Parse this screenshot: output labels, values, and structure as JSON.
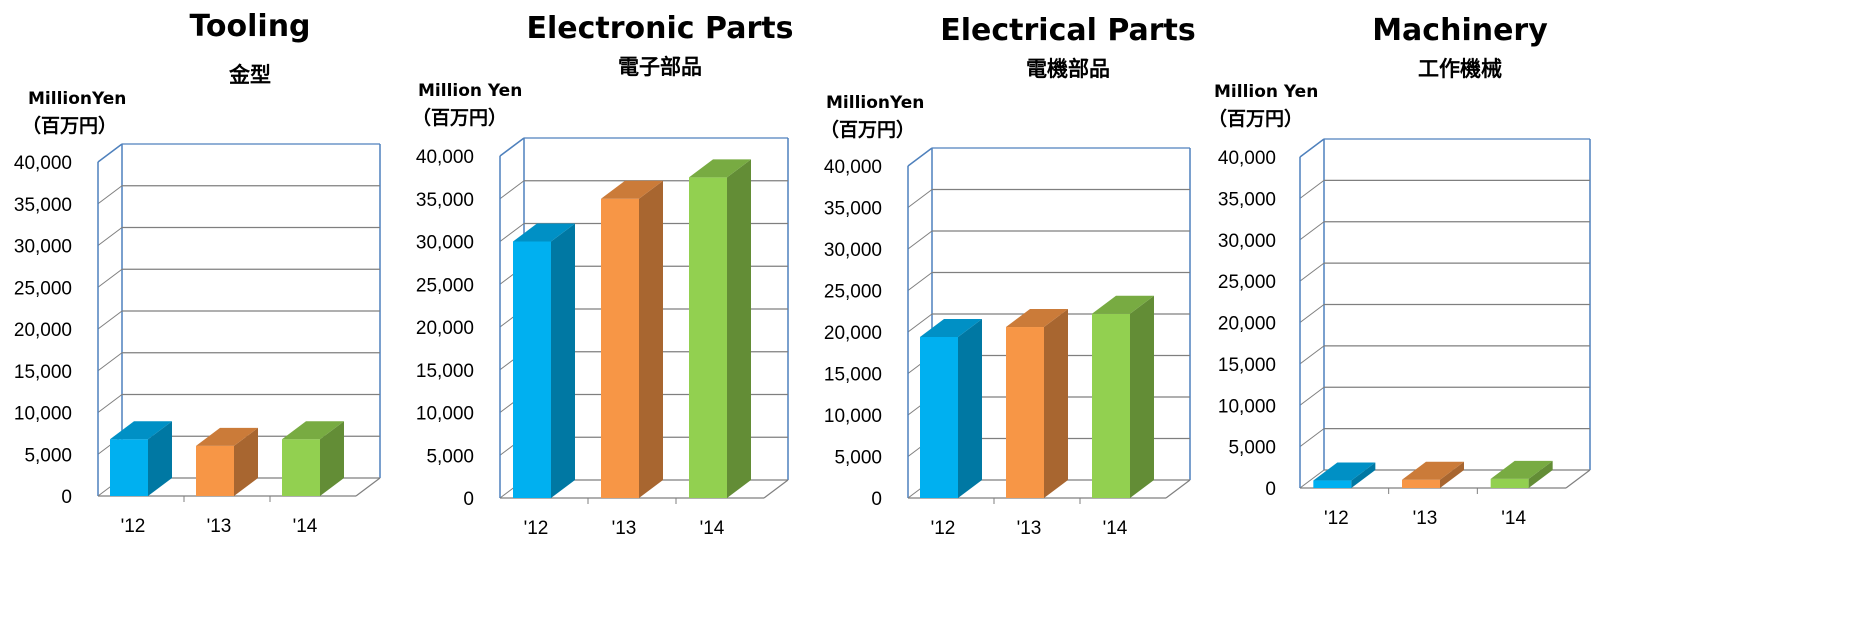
{
  "colors": {
    "bar_2012": "#00B0F0",
    "bar_2013": "#F79646",
    "bar_2014": "#92D050",
    "frame": "#4F81BD",
    "gridline": "#7F7F7F"
  },
  "chart_data": [
    {
      "type": "bar",
      "title": "Tooling",
      "subtitle": "金型",
      "unit_label_line1": "MillionYen",
      "unit_label_line2": "（百万円）",
      "categories": [
        "'12",
        "'13",
        "'14"
      ],
      "values": [
        6800,
        6000,
        6800
      ],
      "ylim": [
        0,
        40000
      ],
      "yticks": [
        "0",
        "5,000",
        "10,000",
        "15,000",
        "20,000",
        "25,000",
        "30,000",
        "35,000",
        "40,000"
      ],
      "grid": true,
      "legend": "none",
      "style": "3d-column"
    },
    {
      "type": "bar",
      "title": "Electronic Parts",
      "subtitle": "電子部品",
      "unit_label_line1": "Million Yen",
      "unit_label_line2": "（百万円）",
      "categories": [
        "'12",
        "'13",
        "'14"
      ],
      "values": [
        30000,
        35000,
        37500
      ],
      "ylim": [
        0,
        40000
      ],
      "yticks": [
        "0",
        "5,000",
        "10,000",
        "15,000",
        "20,000",
        "25,000",
        "30,000",
        "35,000",
        "40,000"
      ],
      "grid": true,
      "legend": "none",
      "style": "3d-column"
    },
    {
      "type": "bar",
      "title": "Electrical Parts",
      "subtitle": "電機部品",
      "unit_label_line1": "MillionYen",
      "unit_label_line2": "（百万円）",
      "categories": [
        "'12",
        "'13",
        "'14"
      ],
      "values": [
        19400,
        20600,
        22200
      ],
      "ylim": [
        0,
        40000
      ],
      "yticks": [
        "0",
        "5,000",
        "10,000",
        "15,000",
        "20,000",
        "25,000",
        "30,000",
        "35,000",
        "40,000"
      ],
      "grid": true,
      "legend": "none",
      "style": "3d-column"
    },
    {
      "type": "bar",
      "title": "Machinery",
      "subtitle": "工作機械",
      "unit_label_line1": "Million Yen",
      "unit_label_line2": "（百万円）",
      "categories": [
        "'12",
        "'13",
        "'14"
      ],
      "values": [
        900,
        1000,
        1100
      ],
      "ylim": [
        0,
        40000
      ],
      "yticks": [
        "0",
        "5,000",
        "10,000",
        "15,000",
        "20,000",
        "25,000",
        "30,000",
        "35,000",
        "40,000"
      ],
      "grid": true,
      "legend": "none",
      "style": "3d-column"
    }
  ]
}
